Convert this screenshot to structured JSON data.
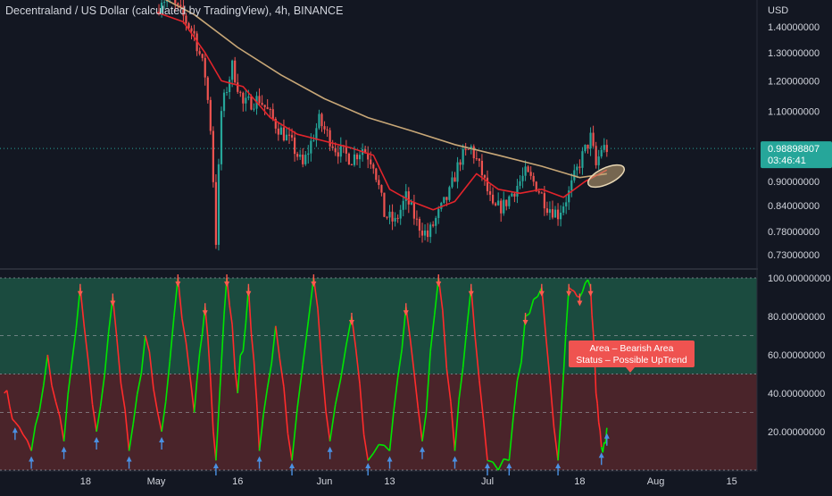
{
  "chart_title": "Decentraland / US Dollar (calculated by TradingView), 4h, BINANCE",
  "colors": {
    "background": "#131722",
    "candle_up": "#26a69a",
    "candle_down": "#ef5350",
    "ma_fast": "#e3242b",
    "ma_slow": "#c8a777",
    "osc_green": "#00e600",
    "osc_red": "#ff2b2b",
    "zone_upper": "#1f5e4a",
    "zone_lower": "#5e2a2d",
    "tooltip_bg": "#ef5350",
    "price_label_bg": "#26a69a"
  },
  "chart_data": [
    {
      "type": "candlestick",
      "title": "Decentraland / US Dollar (calculated by TradingView), 4h, BINANCE",
      "currency_label": "USD",
      "y_scale": "log",
      "ylim": [
        0.72,
        1.56
      ],
      "y_ticks": [
        "1.40000000",
        "1.30000000",
        "1.20000000",
        "1.10000000",
        "0.90000000",
        "0.84000000",
        "0.78000000",
        "0.73000000"
      ],
      "x_ticks": [
        "18",
        "May",
        "16",
        "Jun",
        "13",
        "Jul",
        "18",
        "Aug",
        "15"
      ],
      "last_price": "0.98898807",
      "countdown": "03:46:41",
      "close_series": [
        [
          "May 01",
          1.46
        ],
        [
          "May 02",
          1.52
        ],
        [
          "May 04",
          1.5
        ],
        [
          "May 06",
          1.44
        ],
        [
          "May 08",
          1.37
        ],
        [
          "May 10",
          1.22
        ],
        [
          "May 11",
          1.05
        ],
        [
          "May 12",
          0.76
        ],
        [
          "May 13",
          1.1
        ],
        [
          "May 15",
          1.25
        ],
        [
          "May 17",
          1.12
        ],
        [
          "May 20",
          1.14
        ],
        [
          "May 23",
          1.06
        ],
        [
          "May 26",
          1.0
        ],
        [
          "May 28",
          0.94
        ],
        [
          "May 31",
          1.07
        ],
        [
          "Jun 03",
          0.99
        ],
        [
          "Jun 06",
          0.96
        ],
        [
          "Jun 08",
          0.99
        ],
        [
          "Jun 10",
          0.95
        ],
        [
          "Jun 12",
          0.82
        ],
        [
          "Jun 14",
          0.8
        ],
        [
          "Jun 16",
          0.86
        ],
        [
          "Jun 18",
          0.8
        ],
        [
          "Jun 20",
          0.77
        ],
        [
          "Jun 22",
          0.82
        ],
        [
          "Jun 24",
          0.87
        ],
        [
          "Jun 26",
          0.96
        ],
        [
          "Jun 28",
          0.99
        ],
        [
          "Jun 30",
          0.92
        ],
        [
          "Jul 02",
          0.83
        ],
        [
          "Jul 04",
          0.84
        ],
        [
          "Jul 06",
          0.88
        ],
        [
          "Jul 08",
          0.92
        ],
        [
          "Jul 10",
          0.89
        ],
        [
          "Jul 12",
          0.84
        ],
        [
          "Jul 14",
          0.82
        ],
        [
          "Jul 16",
          0.87
        ],
        [
          "Jul 18",
          0.95
        ],
        [
          "Jul 20",
          1.02
        ],
        [
          "Jul 21",
          0.94
        ],
        [
          "Jul 22",
          0.99
        ],
        [
          "Jul 23",
          0.99
        ]
      ],
      "ma_fast_series": [
        [
          "May 01",
          1.46
        ],
        [
          "May 06",
          1.42
        ],
        [
          "May 10",
          1.3
        ],
        [
          "May 13",
          1.2
        ],
        [
          "May 17",
          1.18
        ],
        [
          "May 22",
          1.08
        ],
        [
          "May 27",
          1.03
        ],
        [
          "Jun 01",
          1.01
        ],
        [
          "Jun 06",
          0.99
        ],
        [
          "Jun 10",
          0.97
        ],
        [
          "Jun 13",
          0.88
        ],
        [
          "Jun 17",
          0.85
        ],
        [
          "Jun 21",
          0.83
        ],
        [
          "Jun 25",
          0.85
        ],
        [
          "Jun 29",
          0.92
        ],
        [
          "Jul 03",
          0.88
        ],
        [
          "Jul 07",
          0.87
        ],
        [
          "Jul 11",
          0.88
        ],
        [
          "Jul 15",
          0.86
        ],
        [
          "Jul 19",
          0.9
        ],
        [
          "Jul 23",
          0.93
        ]
      ],
      "ma_slow_series": [
        [
          "Apr 29",
          1.56
        ],
        [
          "May 08",
          1.45
        ],
        [
          "May 16",
          1.32
        ],
        [
          "May 24",
          1.22
        ],
        [
          "Jun 01",
          1.14
        ],
        [
          "Jun 09",
          1.08
        ],
        [
          "Jun 17",
          1.04
        ],
        [
          "Jun 25",
          1.0
        ],
        [
          "Jul 03",
          0.97
        ],
        [
          "Jul 11",
          0.94
        ],
        [
          "Jul 18",
          0.91
        ],
        [
          "Jul 23",
          0.92
        ]
      ]
    },
    {
      "type": "line",
      "ylim": [
        0,
        100
      ],
      "y_ticks": [
        "100.00000000",
        "80.00000000",
        "60.00000000",
        "40.00000000",
        "20.00000000"
      ],
      "zone_upper": [
        50,
        100
      ],
      "zone_lower": [
        0,
        50
      ],
      "dashed_levels": [
        70,
        30
      ],
      "series": [
        {
          "values": [
            [
              "Apr 03",
              40
            ],
            [
              "Apr 05",
              25
            ],
            [
              "Apr 08",
              10
            ],
            [
              "Apr 11",
              60
            ],
            [
              "Apr 14",
              15
            ],
            [
              "Apr 17",
              95
            ],
            [
              "Apr 20",
              20
            ],
            [
              "Apr 23",
              90
            ],
            [
              "Apr 26",
              10
            ],
            [
              "Apr 29",
              70
            ],
            [
              "May 02",
              20
            ],
            [
              "May 05",
              100
            ],
            [
              "May 08",
              30
            ],
            [
              "May 10",
              85
            ],
            [
              "May 12",
              5
            ],
            [
              "May 14",
              100
            ],
            [
              "May 16",
              40
            ],
            [
              "May 18",
              95
            ],
            [
              "May 20",
              10
            ],
            [
              "May 23",
              75
            ],
            [
              "May 26",
              5
            ],
            [
              "May 30",
              100
            ],
            [
              "Jun 02",
              15
            ],
            [
              "Jun 06",
              80
            ],
            [
              "Jun 09",
              5
            ],
            [
              "Jun 13",
              10
            ],
            [
              "Jun 16",
              85
            ],
            [
              "Jun 19",
              15
            ],
            [
              "Jun 22",
              100
            ],
            [
              "Jun 25",
              10
            ],
            [
              "Jun 28",
              95
            ],
            [
              "Jul 01",
              5
            ],
            [
              "Jul 05",
              5
            ],
            [
              "Jul 08",
              80
            ],
            [
              "Jul 11",
              95
            ],
            [
              "Jul 14",
              5
            ],
            [
              "Jul 16",
              95
            ],
            [
              "Jul 18",
              90
            ],
            [
              "Jul 20",
              95
            ],
            [
              "Jul 21",
              40
            ],
            [
              "Jul 22",
              12
            ],
            [
              "Jul 23",
              22
            ]
          ]
        }
      ],
      "tooltip": {
        "line1": "Area – Bearish Area",
        "line2": "Status –  Possible UpTrend"
      }
    }
  ]
}
